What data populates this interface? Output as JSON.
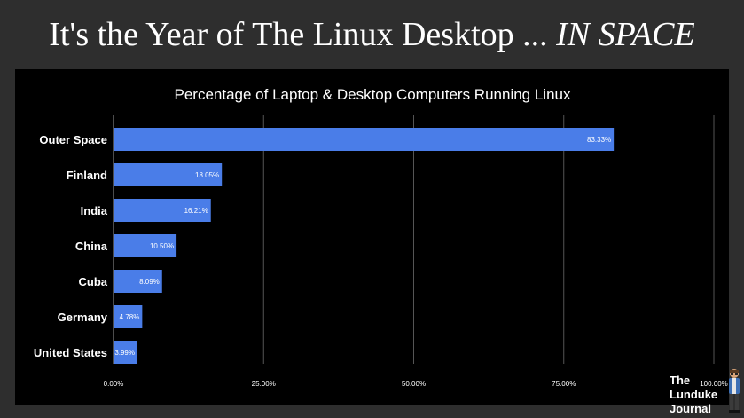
{
  "headline": {
    "main": "It's the Year of The Linux Desktop ... ",
    "emphasis": "IN SPACE"
  },
  "chart_data": {
    "type": "bar",
    "orientation": "horizontal",
    "title": "Percentage of Laptop & Desktop Computers Running Linux",
    "categories": [
      "Outer Space",
      "Finland",
      "India",
      "China",
      "Cuba",
      "Germany",
      "United States"
    ],
    "values": [
      83.33,
      18.05,
      16.21,
      10.5,
      8.09,
      4.78,
      3.99
    ],
    "value_labels": [
      "83.33%",
      "18.05%",
      "16.21%",
      "10.50%",
      "8.09%",
      "4.78%",
      "3.99%"
    ],
    "xlim": [
      0,
      100
    ],
    "xticks": [
      0,
      25,
      50,
      75,
      100
    ],
    "xtick_labels": [
      "0.00%",
      "25.00%",
      "50.00%",
      "75.00%",
      "100.00%"
    ],
    "xlabel": "",
    "ylabel": "",
    "grid": true,
    "bar_color": "#4a7de8",
    "background": "#000000"
  },
  "logo": {
    "line1": "The",
    "line2": "Lunduke",
    "line3": "Journal"
  },
  "colors": {
    "page_background": "#2e2e2e",
    "text": "#ffffff",
    "gridline": "#555555"
  }
}
